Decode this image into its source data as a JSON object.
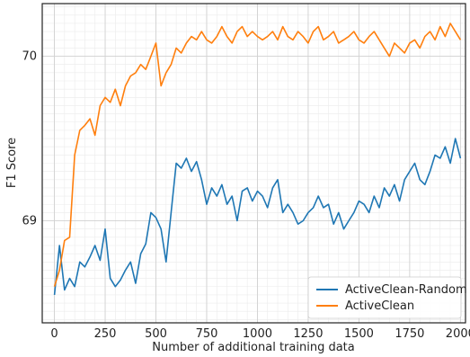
{
  "chart_data": {
    "type": "line",
    "title": "",
    "xlabel": "Number of additional training data",
    "ylabel": "F1 Score",
    "xlim": [
      -60,
      2025
    ],
    "ylim": [
      68.38,
      70.32
    ],
    "xticks": [
      0,
      250,
      500,
      750,
      1000,
      1250,
      1500,
      1750,
      2000
    ],
    "yticks": [
      69,
      70
    ],
    "ytick_labels": [
      "69",
      "70"
    ],
    "grid": true,
    "legend_position": "lower-right",
    "series": [
      {
        "name": "ActiveClean-Random",
        "color": "#1f77b4",
        "x": [
          0,
          25,
          50,
          75,
          100,
          125,
          150,
          175,
          200,
          225,
          250,
          275,
          300,
          325,
          350,
          375,
          400,
          425,
          450,
          475,
          500,
          525,
          550,
          575,
          600,
          625,
          650,
          675,
          700,
          725,
          750,
          775,
          800,
          825,
          850,
          875,
          900,
          925,
          950,
          975,
          1000,
          1025,
          1050,
          1075,
          1100,
          1125,
          1150,
          1175,
          1200,
          1225,
          1250,
          1275,
          1300,
          1325,
          1350,
          1375,
          1400,
          1425,
          1450,
          1475,
          1500,
          1525,
          1550,
          1575,
          1600,
          1625,
          1650,
          1675,
          1700,
          1725,
          1750,
          1775,
          1800,
          1825,
          1850,
          1875,
          1900,
          1925,
          1950,
          1975,
          2000
        ],
        "values": [
          68.55,
          68.85,
          68.58,
          68.65,
          68.6,
          68.75,
          68.72,
          68.78,
          68.85,
          68.76,
          68.95,
          68.65,
          68.6,
          68.64,
          68.7,
          68.75,
          68.62,
          68.8,
          68.86,
          69.05,
          69.02,
          68.95,
          68.75,
          69.05,
          69.35,
          69.32,
          69.38,
          69.3,
          69.36,
          69.25,
          69.1,
          69.2,
          69.15,
          69.22,
          69.1,
          69.15,
          69.0,
          69.18,
          69.2,
          69.12,
          69.18,
          69.15,
          69.08,
          69.2,
          69.25,
          69.05,
          69.1,
          69.05,
          68.98,
          69.0,
          69.05,
          69.08,
          69.15,
          69.08,
          69.1,
          68.98,
          69.05,
          68.95,
          69.0,
          69.05,
          69.12,
          69.1,
          69.05,
          69.15,
          69.08,
          69.2,
          69.15,
          69.22,
          69.12,
          69.25,
          69.3,
          69.35,
          69.25,
          69.22,
          69.3,
          69.4,
          69.38,
          69.45,
          69.35,
          69.5,
          69.38
        ]
      },
      {
        "name": "ActiveClean",
        "color": "#ff7f0e",
        "x": [
          0,
          25,
          50,
          75,
          100,
          125,
          150,
          175,
          200,
          225,
          250,
          275,
          300,
          325,
          350,
          375,
          400,
          425,
          450,
          475,
          500,
          525,
          550,
          575,
          600,
          625,
          650,
          675,
          700,
          725,
          750,
          775,
          800,
          825,
          850,
          875,
          900,
          925,
          950,
          975,
          1000,
          1025,
          1050,
          1075,
          1100,
          1125,
          1150,
          1175,
          1200,
          1225,
          1250,
          1275,
          1300,
          1325,
          1350,
          1375,
          1400,
          1425,
          1450,
          1475,
          1500,
          1525,
          1550,
          1575,
          1600,
          1625,
          1650,
          1675,
          1700,
          1725,
          1750,
          1775,
          1800,
          1825,
          1850,
          1875,
          1900,
          1925,
          1950,
          1975,
          2000
        ],
        "values": [
          68.6,
          68.7,
          68.88,
          68.9,
          69.4,
          69.55,
          69.58,
          69.62,
          69.52,
          69.7,
          69.75,
          69.72,
          69.8,
          69.7,
          69.82,
          69.88,
          69.9,
          69.95,
          69.92,
          70.0,
          70.08,
          69.82,
          69.9,
          69.95,
          70.05,
          70.02,
          70.08,
          70.12,
          70.1,
          70.15,
          70.1,
          70.08,
          70.12,
          70.18,
          70.12,
          70.08,
          70.15,
          70.18,
          70.12,
          70.15,
          70.12,
          70.1,
          70.12,
          70.15,
          70.1,
          70.18,
          70.12,
          70.1,
          70.15,
          70.12,
          70.08,
          70.15,
          70.18,
          70.1,
          70.12,
          70.15,
          70.08,
          70.1,
          70.12,
          70.15,
          70.1,
          70.08,
          70.12,
          70.15,
          70.1,
          70.05,
          70.0,
          70.08,
          70.05,
          70.02,
          70.08,
          70.1,
          70.05,
          70.12,
          70.15,
          70.1,
          70.18,
          70.12,
          70.2,
          70.15,
          70.1
        ]
      }
    ]
  }
}
